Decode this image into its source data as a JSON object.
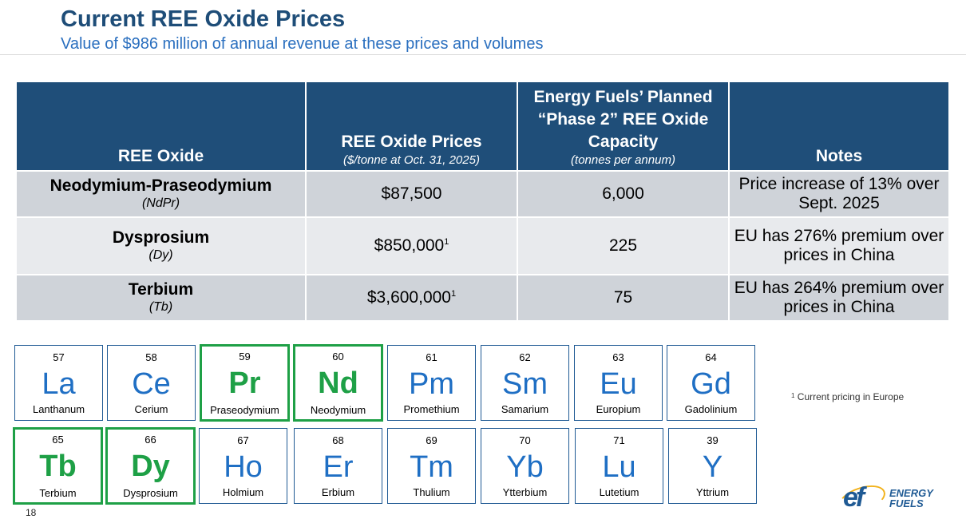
{
  "header": {
    "title": "Current REE Oxide Prices",
    "subtitle": "Value of $986 million of annual revenue at these prices and volumes"
  },
  "table": {
    "headers": {
      "col1": "REE Oxide",
      "col2": "REE Oxide Prices",
      "col2_sub": "($/tonne at Oct. 31, 2025)",
      "col3": "Energy Fuels’ Planned “Phase 2” REE Oxide Capacity",
      "col3_sub": "(tonnes per annum)",
      "col4": "Notes"
    },
    "rows": [
      {
        "name": "Neodymium-Praseodymium",
        "symbol": "(NdPr)",
        "price": "$87,500",
        "price_fn": "",
        "capacity": "6,000",
        "notes": "Price increase of 13% over Sept. 2025"
      },
      {
        "name": "Dysprosium",
        "symbol": "(Dy)",
        "price": "$850,000",
        "price_fn": "1",
        "capacity": "225",
        "notes": "EU has 276% premium over prices in China"
      },
      {
        "name": "Terbium",
        "symbol": "(Tb)",
        "price": "$3,600,000",
        "price_fn": "1",
        "capacity": "75",
        "notes": "EU has 264% premium over prices in China"
      }
    ]
  },
  "elements": [
    {
      "num": "57",
      "sym": "La",
      "name": "Lanthanum"
    },
    {
      "num": "58",
      "sym": "Ce",
      "name": "Cerium"
    },
    {
      "num": "59",
      "sym": "Pr",
      "name": "Praseodymium"
    },
    {
      "num": "60",
      "sym": "Nd",
      "name": "Neodymium"
    },
    {
      "num": "61",
      "sym": "Pm",
      "name": "Promethium"
    },
    {
      "num": "62",
      "sym": "Sm",
      "name": "Samarium"
    },
    {
      "num": "63",
      "sym": "Eu",
      "name": "Europium"
    },
    {
      "num": "64",
      "sym": "Gd",
      "name": "Gadolinium"
    },
    {
      "num": "65",
      "sym": "Tb",
      "name": "Terbium"
    },
    {
      "num": "66",
      "sym": "Dy",
      "name": "Dysprosium"
    },
    {
      "num": "67",
      "sym": "Ho",
      "name": "Holmium"
    },
    {
      "num": "68",
      "sym": "Er",
      "name": "Erbium"
    },
    {
      "num": "69",
      "sym": "Tm",
      "name": "Thulium"
    },
    {
      "num": "70",
      "sym": "Yb",
      "name": "Ytterbium"
    },
    {
      "num": "71",
      "sym": "Lu",
      "name": "Lutetium"
    },
    {
      "num": "39",
      "sym": "Y",
      "name": "Yttrium"
    }
  ],
  "highlighted_color": "#1ea046",
  "element_color": "#1f6fc4",
  "header_color": "#1f4e79",
  "footnote": {
    "marker": "1",
    "text": "Current pricing in Europe"
  },
  "page_number": "18",
  "logo": {
    "mark": "ef",
    "line1": "ENERGY",
    "line2": "FUELS"
  }
}
